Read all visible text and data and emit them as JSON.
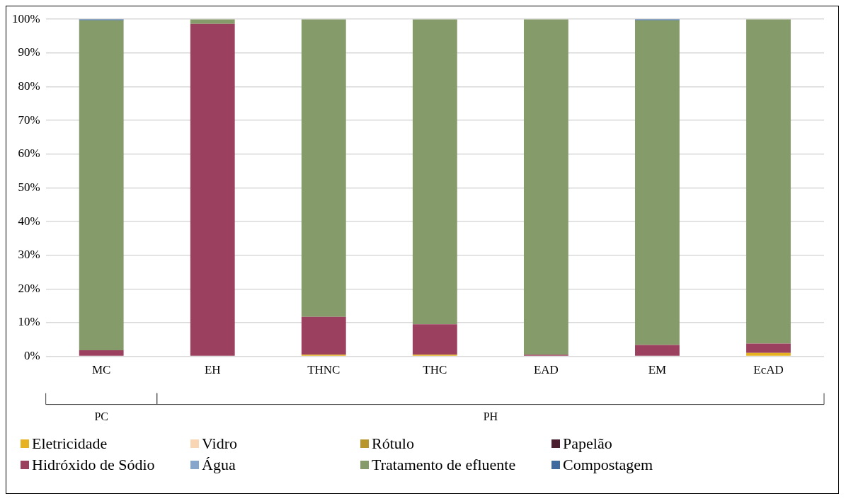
{
  "chart_data": {
    "type": "bar",
    "stacked": true,
    "categories": [
      "MC",
      "EH",
      "THNC",
      "THC",
      "EAD",
      "EM",
      "EcAD"
    ],
    "series": [
      {
        "name": "Eletricidade",
        "color": "#e6b222",
        "values": [
          0,
          0,
          0.5,
          0.5,
          0,
          0.2,
          1.0
        ]
      },
      {
        "name": "Vidro",
        "color": "#f8d6b4",
        "values": [
          0,
          0,
          0,
          0,
          0,
          0,
          0
        ]
      },
      {
        "name": "Rótulo",
        "color": "#b8962a",
        "values": [
          0,
          0,
          0,
          0,
          0,
          0,
          0
        ]
      },
      {
        "name": "Papelão",
        "color": "#4a1e2e",
        "values": [
          0,
          0,
          0,
          0,
          0,
          0,
          0
        ]
      },
      {
        "name": "Hidróxido de Sódio",
        "color": "#9b405e",
        "values": [
          1.8,
          98.6,
          11.2,
          9.0,
          0.5,
          3.2,
          2.8
        ]
      },
      {
        "name": "Água",
        "color": "#86a6cc",
        "values": [
          0,
          0,
          0,
          0,
          0,
          0,
          0
        ]
      },
      {
        "name": "Tratamento de efluente",
        "color": "#859b6a",
        "values": [
          97.9,
          1.4,
          88.3,
          90.5,
          99.5,
          96.3,
          96.2
        ]
      },
      {
        "name": "Compostagem",
        "color": "#3e6a9e",
        "values": [
          0.3,
          0,
          0,
          0,
          0,
          0.3,
          0
        ]
      }
    ],
    "ylim": [
      0,
      100
    ],
    "yticks": [
      {
        "value": 0,
        "label": "0%"
      },
      {
        "value": 10,
        "label": "10%"
      },
      {
        "value": 20,
        "label": "20%"
      },
      {
        "value": 30,
        "label": "30%"
      },
      {
        "value": 40,
        "label": "40%"
      },
      {
        "value": 50,
        "label": "50%"
      },
      {
        "value": 60,
        "label": "60%"
      },
      {
        "value": 70,
        "label": "70%"
      },
      {
        "value": 80,
        "label": "80%"
      },
      {
        "value": 90,
        "label": "90%"
      },
      {
        "value": 100,
        "label": "100%"
      }
    ],
    "grid": "y",
    "legend": "bottom",
    "annotations": [
      "PC",
      "PH"
    ]
  }
}
